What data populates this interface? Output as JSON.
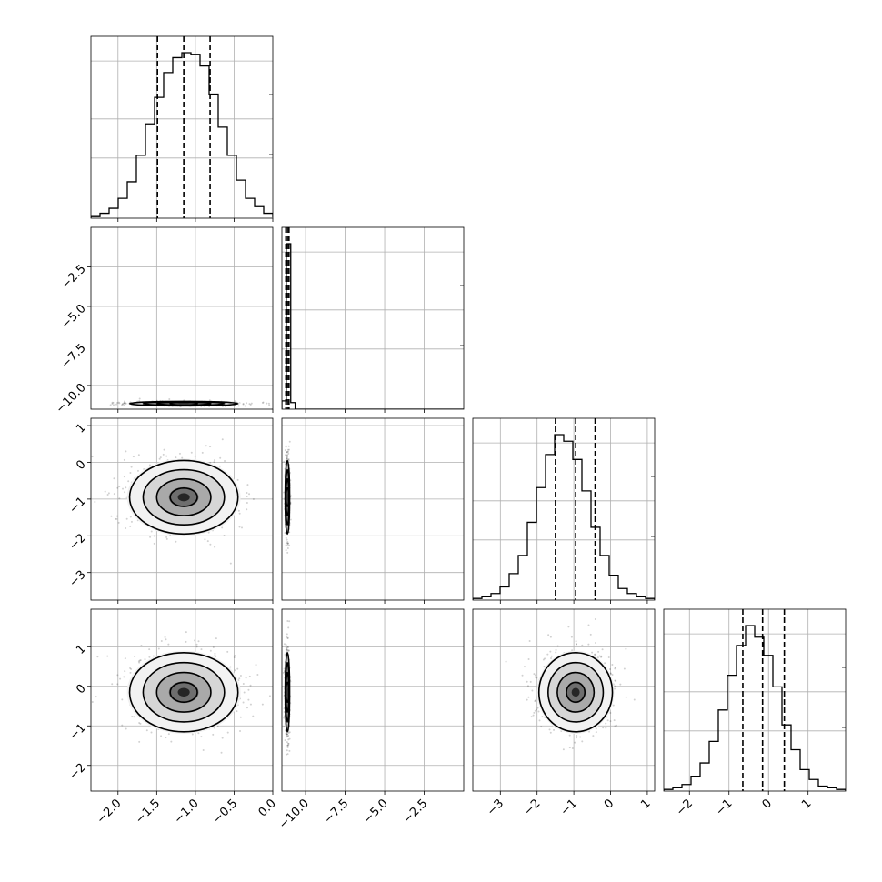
{
  "chart_data": {
    "type": "corner",
    "grid": true,
    "quantiles": [
      0.16,
      0.5,
      0.84
    ],
    "parameters": [
      {
        "index": 0,
        "range": [
          -2.35,
          0.0
        ],
        "ticks": [
          -2.0,
          -1.5,
          -1.0,
          -0.5,
          0.0
        ],
        "tick_labels": [
          "−2.0",
          "−1.5",
          "−1.0",
          "−0.5",
          "0.0"
        ],
        "hist_edges_start": -2.35,
        "hist_bin_width": 0.1175,
        "hist_counts": [
          1,
          3,
          6,
          12,
          22,
          38,
          57,
          73,
          88,
          97,
          100,
          99,
          92,
          75,
          55,
          38,
          23,
          12,
          7,
          3,
          1
        ],
        "quantile_values": [
          -1.49,
          -1.15,
          -0.81
        ]
      },
      {
        "index": 1,
        "range": [
          -11.5,
          0.0
        ],
        "ticks": [
          -10.0,
          -7.5,
          -5.0,
          -2.5
        ],
        "tick_labels": [
          "−10.0",
          "−7.5",
          "−5.0",
          "−2.5"
        ],
        "hist_edges_start": -11.5,
        "hist_bin_width": 0.28,
        "hist_counts": [
          5,
          100,
          4
        ],
        "quantile_values": [
          -11.25,
          -11.15,
          -11.05
        ]
      },
      {
        "index": 2,
        "range": [
          -3.75,
          1.2
        ],
        "ticks": [
          -3,
          -2,
          -1,
          0,
          1
        ],
        "tick_labels": [
          "−3",
          "−2",
          "−1",
          "0",
          "1"
        ],
        "hist_edges_start": -3.75,
        "hist_bin_width": 0.2475,
        "hist_counts": [
          1,
          2,
          4,
          8,
          16,
          27,
          47,
          68,
          88,
          100,
          96,
          85,
          66,
          44,
          27,
          15,
          7,
          4,
          2,
          1
        ],
        "quantile_values": [
          -1.5,
          -0.95,
          -0.42
        ]
      },
      {
        "index": 3,
        "range": [
          -2.65,
          1.95
        ],
        "ticks": [
          -2,
          -1,
          0,
          1
        ],
        "tick_labels": [
          "−2",
          "−1",
          "0",
          "1"
        ],
        "hist_edges_start": -2.65,
        "hist_bin_width": 0.23,
        "hist_counts": [
          1,
          2,
          4,
          9,
          17,
          30,
          49,
          70,
          88,
          100,
          93,
          82,
          63,
          40,
          25,
          13,
          7,
          3,
          2,
          1
        ],
        "quantile_values": [
          -0.65,
          -0.15,
          0.4
        ]
      }
    ],
    "pairs": [
      {
        "row": 1,
        "col": 0,
        "center": [
          -1.15,
          -11.15
        ],
        "sd": [
          0.35,
          0.07
        ]
      },
      {
        "row": 2,
        "col": 0,
        "center": [
          -1.15,
          -0.95
        ],
        "sd": [
          0.35,
          0.5
        ]
      },
      {
        "row": 2,
        "col": 1,
        "center": [
          -11.15,
          -0.95
        ],
        "sd": [
          0.07,
          0.5
        ]
      },
      {
        "row": 3,
        "col": 0,
        "center": [
          -1.15,
          -0.15
        ],
        "sd": [
          0.35,
          0.5
        ]
      },
      {
        "row": 3,
        "col": 1,
        "center": [
          -11.15,
          -0.15
        ],
        "sd": [
          0.07,
          0.5
        ]
      },
      {
        "row": 3,
        "col": 2,
        "center": [
          -0.95,
          -0.15
        ],
        "sd": [
          0.5,
          0.5
        ]
      }
    ]
  }
}
